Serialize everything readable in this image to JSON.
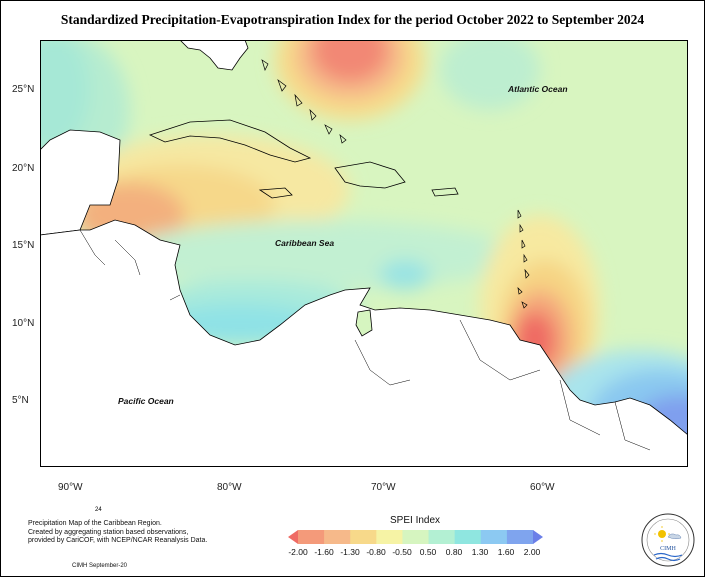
{
  "title": "Standardized Precipitation-Evapotranspiration Index for the period October 2022 to September 2024",
  "map": {
    "region": "Caribbean",
    "lat_ticks": [
      "25°N",
      "20°N",
      "15°N",
      "10°N",
      "5°N"
    ],
    "lon_ticks": [
      "90°W",
      "80°W",
      "70°W",
      "60°W"
    ],
    "labels": {
      "atlantic": "Atlantic Ocean",
      "caribbean": "Caribbean Sea",
      "pacific": "Pacific Ocean"
    },
    "colors": {
      "land": "#ffffff",
      "background_anomaly": "#d6f5c0",
      "wet": "#9ee8d6",
      "drier": "#f6d77a",
      "driest": "#f0706a"
    }
  },
  "legend": {
    "title": "SPEI Index",
    "ticks": [
      "-2.00",
      "-1.60",
      "-1.30",
      "-0.80",
      "-0.50",
      "0.50",
      "0.80",
      "1.30",
      "1.60",
      "2.00"
    ],
    "colors": [
      "#ef6b64",
      "#f49a7a",
      "#f6b98a",
      "#f7d98a",
      "#f6f3a5",
      "#d6f5c0",
      "#b3f0d3",
      "#8fe6e0",
      "#8cc9f2",
      "#7fa4ee",
      "#6b7fe8"
    ]
  },
  "footer": {
    "number": "24",
    "lines": [
      "Precipitation Map of the Caribbean Region.",
      "Created by aggregating station based observations,",
      "provided by CariCOF, with NCEP/NCAR Reanalysis Data."
    ],
    "version": "CIMH September-20"
  },
  "logo": {
    "text": "CIMH"
  }
}
